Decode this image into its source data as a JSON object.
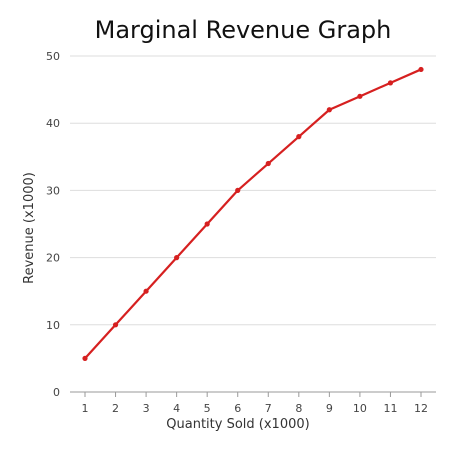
{
  "chart_data": {
    "type": "line",
    "title": "Marginal Revenue Graph",
    "xlabel": "Quantity Sold (x1000)",
    "ylabel": "Revenue (x1000)",
    "x": [
      1,
      2,
      3,
      4,
      5,
      6,
      7,
      8,
      9,
      10,
      11,
      12
    ],
    "series": [
      {
        "values": [
          5,
          10,
          15,
          20,
          25,
          30,
          34,
          38,
          42,
          44,
          46,
          48
        ],
        "color": "#d62020"
      }
    ],
    "xlim": [
      1,
      12
    ],
    "ylim": [
      0,
      50
    ],
    "yticks": [
      0,
      10,
      20,
      30,
      40,
      50
    ],
    "grid": "horizontal",
    "legend": "none"
  }
}
